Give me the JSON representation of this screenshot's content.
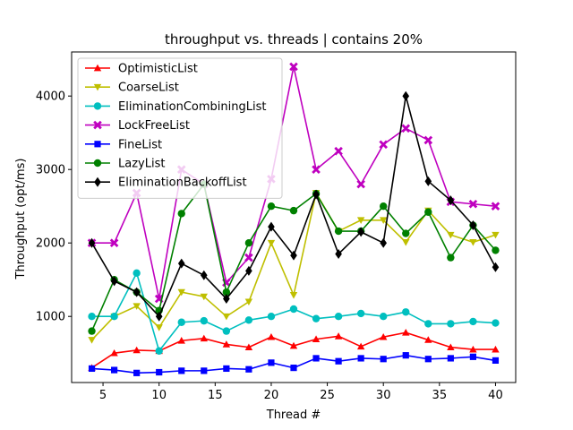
{
  "chart_data": {
    "type": "line",
    "title": "throughput vs. threads | contains 20%",
    "xlabel": "Thread #",
    "ylabel": "Throughput (opt/ms)",
    "xlim": [
      2.2,
      41.8
    ],
    "ylim": [
      100,
      4600
    ],
    "xticks": [
      5,
      10,
      15,
      20,
      25,
      30,
      35,
      40
    ],
    "yticks": [
      1000,
      2000,
      3000,
      4000
    ],
    "grid": false,
    "legend_position": "top-left",
    "x": [
      4,
      6,
      8,
      10,
      12,
      14,
      16,
      18,
      20,
      22,
      24,
      26,
      28,
      30,
      32,
      34,
      36,
      38,
      40
    ],
    "series": [
      {
        "name": "OptimisticList",
        "color": "#ff0000",
        "marker": "triangle-up",
        "values": [
          300,
          500,
          540,
          530,
          670,
          700,
          620,
          580,
          720,
          600,
          690,
          730,
          590,
          720,
          780,
          680,
          580,
          550,
          550
        ]
      },
      {
        "name": "CoarseList",
        "color": "#bfbf00",
        "marker": "triangle-down",
        "values": [
          680,
          1000,
          1140,
          850,
          1330,
          1270,
          1000,
          1200,
          2000,
          1290,
          2680,
          2160,
          2310,
          2310,
          2010,
          2440,
          2110,
          2010,
          2110
        ]
      },
      {
        "name": "EliminationCombiningList",
        "color": "#00bfbf",
        "marker": "circle",
        "values": [
          1000,
          1000,
          1590,
          530,
          920,
          940,
          800,
          950,
          1000,
          1100,
          970,
          1000,
          1040,
          1000,
          1060,
          900,
          900,
          930,
          910
        ]
      },
      {
        "name": "LockFreeList",
        "color": "#bf00bf",
        "marker": "x",
        "values": [
          2000,
          2000,
          2680,
          1240,
          3000,
          2800,
          1460,
          1800,
          2870,
          4400,
          3000,
          3250,
          2800,
          3340,
          3560,
          3400,
          2560,
          2530,
          2500
        ]
      },
      {
        "name": "FineList",
        "color": "#0000ff",
        "marker": "square",
        "values": [
          290,
          270,
          230,
          240,
          260,
          260,
          290,
          280,
          370,
          300,
          430,
          390,
          430,
          420,
          470,
          420,
          430,
          450,
          400
        ]
      },
      {
        "name": "LazyList",
        "color": "#008000",
        "marker": "circle",
        "values": [
          800,
          1500,
          1330,
          1080,
          2400,
          2800,
          1330,
          2000,
          2500,
          2440,
          2670,
          2160,
          2160,
          2500,
          2130,
          2420,
          1800,
          2240,
          1900
        ]
      },
      {
        "name": "EliminationBackoffList",
        "color": "#000000",
        "marker": "diamond",
        "values": [
          2000,
          1480,
          1330,
          1000,
          1720,
          1560,
          1240,
          1620,
          2220,
          1830,
          2660,
          1850,
          2150,
          2000,
          4000,
          2840,
          2580,
          2240,
          1670
        ]
      }
    ]
  }
}
